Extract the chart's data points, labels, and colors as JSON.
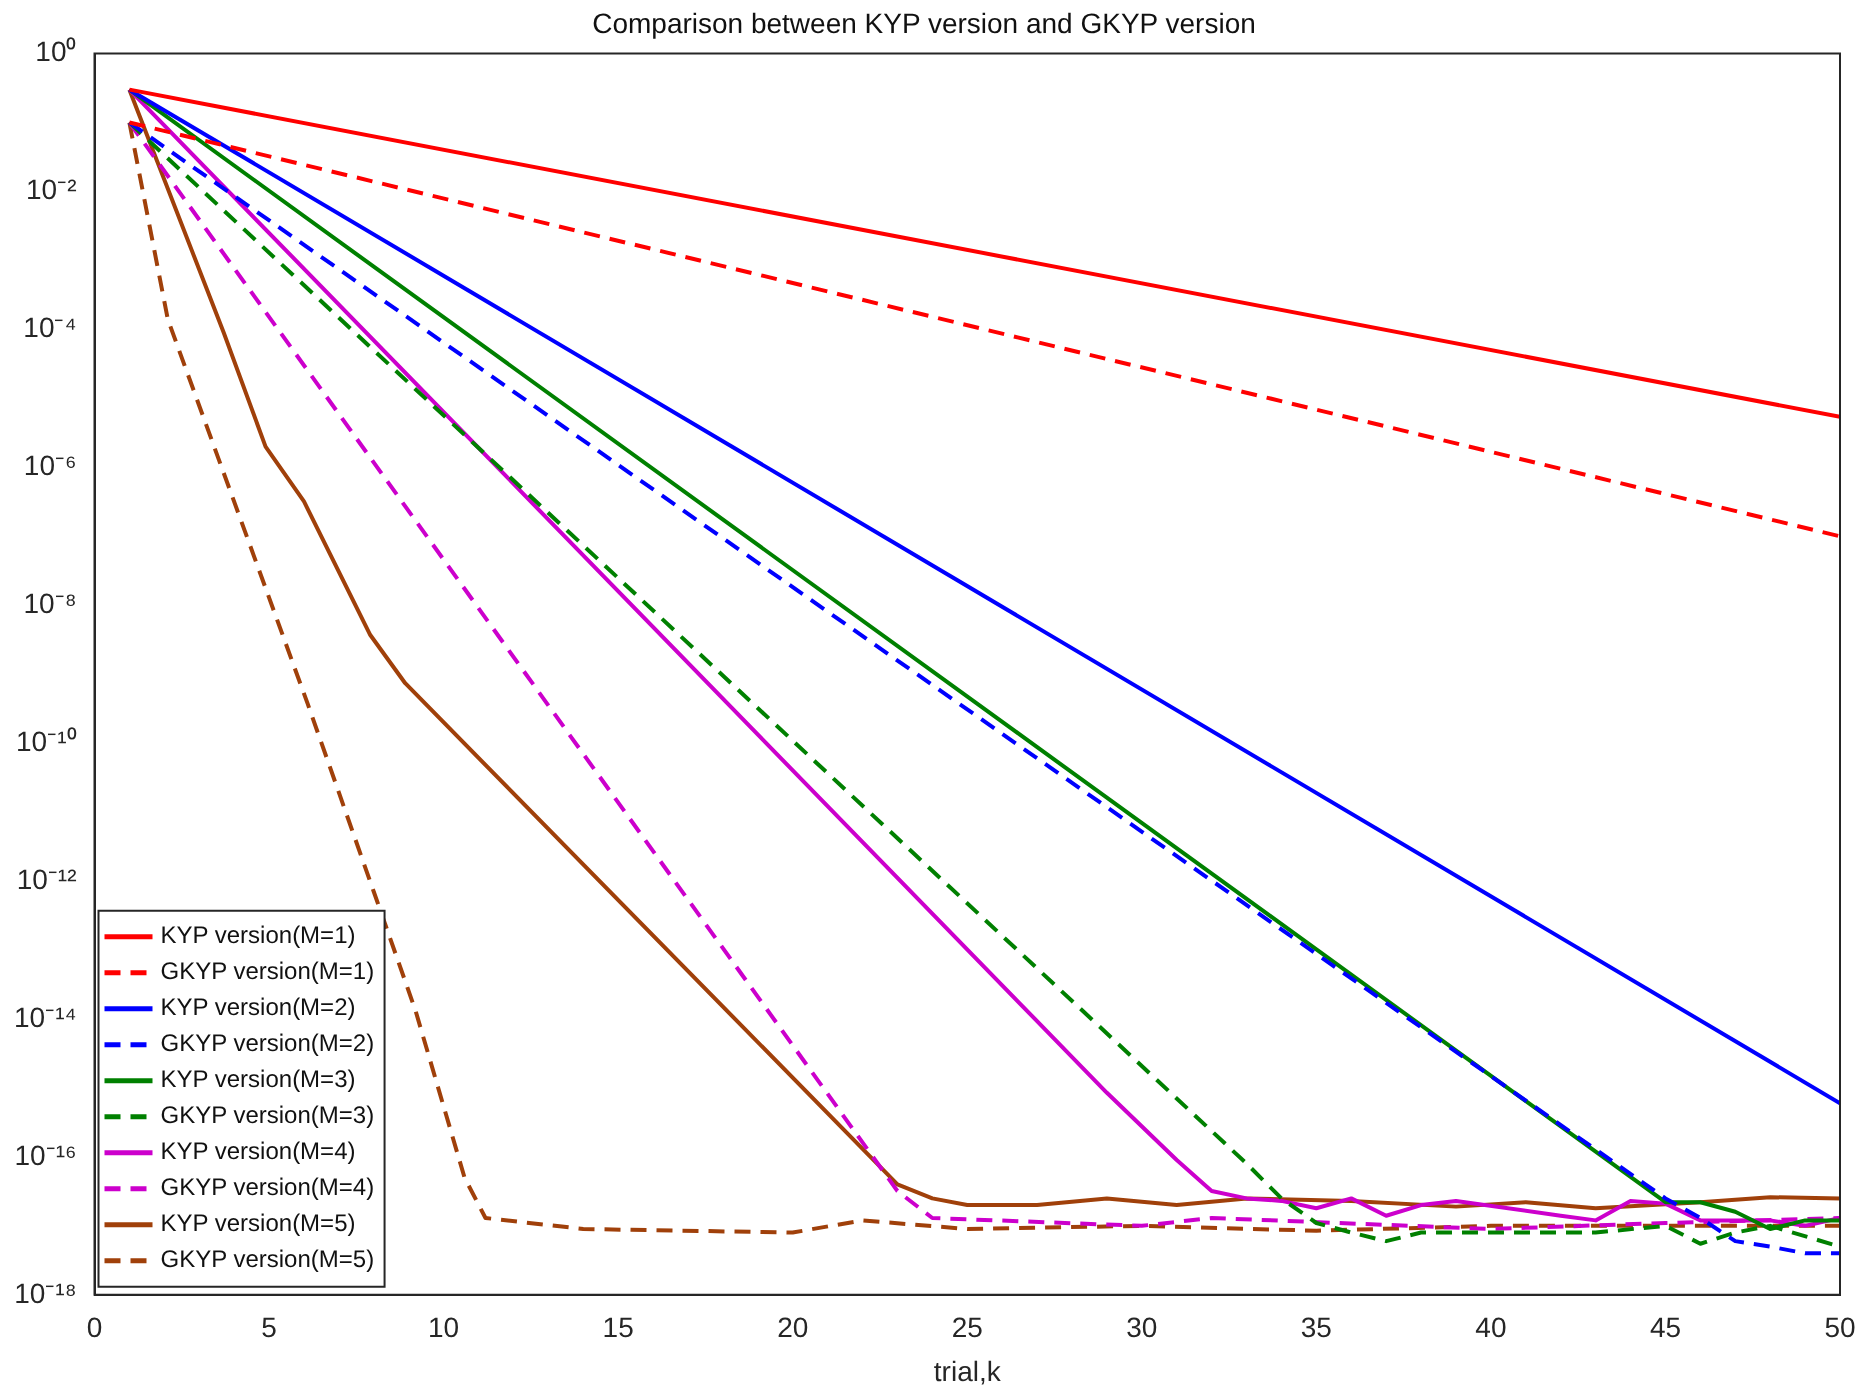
{
  "chart_data": {
    "type": "line",
    "title": "Comparison between KYP version and GKYP version",
    "xlabel": "trial,k",
    "log": "y",
    "xlim": [
      0,
      50
    ],
    "xticks": [
      0,
      5,
      10,
      15,
      20,
      25,
      30,
      35,
      40,
      45,
      50
    ],
    "ylim": [
      1e-18,
      1
    ],
    "yticks": [
      {
        "value": 1e-18,
        "label": "10⁻¹⁸"
      },
      {
        "value": 1e-16,
        "label": "10⁻¹⁶"
      },
      {
        "value": 1e-14,
        "label": "10⁻¹⁴"
      },
      {
        "value": 1e-12,
        "label": "10⁻¹²"
      },
      {
        "value": 1e-10,
        "label": "10⁻¹⁰"
      },
      {
        "value": 1e-08,
        "label": "10⁻⁸"
      },
      {
        "value": 1e-06,
        "label": "10⁻⁶"
      },
      {
        "value": 0.0001,
        "label": "10⁻⁴"
      },
      {
        "value": 0.01,
        "label": "10⁻²"
      },
      {
        "value": 1,
        "label": "10⁰"
      }
    ],
    "grid": false,
    "legend": "bottom left",
    "marker": "none",
    "series": [
      {
        "name": "KYP version(M=1)",
        "color": "#ff0000",
        "line_style": "solid",
        "x": [
          1,
          50
        ],
        "values": [
          0.3,
          5.4e-06
        ]
      },
      {
        "name": "GKYP version(M=1)",
        "color": "#ff0000",
        "line_style": "dashed",
        "x": [
          1,
          50
        ],
        "values": [
          0.1,
          1e-07
        ]
      },
      {
        "name": "KYP version(M=2)",
        "color": "#0000ff",
        "line_style": "solid",
        "x": [
          1,
          50
        ],
        "values": [
          0.3,
          6e-16
        ]
      },
      {
        "name": "GKYP version(M=2)",
        "color": "#0000ff",
        "line_style": "dashed",
        "x": [
          1,
          45,
          46,
          47,
          48,
          49,
          50
        ],
        "values": [
          0.1,
          2.5e-17,
          1.3e-17,
          6e-18,
          5e-18,
          4e-18,
          4e-18
        ]
      },
      {
        "name": "KYP version(M=3)",
        "color": "#008000",
        "line_style": "solid",
        "x": [
          1,
          45,
          46,
          47,
          48,
          49,
          50
        ],
        "values": [
          0.3,
          2.2e-17,
          2.2e-17,
          1.6e-17,
          9e-18,
          1.2e-17,
          1.2e-17
        ]
      },
      {
        "name": "GKYP version(M=3)",
        "color": "#008000",
        "line_style": "dashed",
        "x": [
          1,
          33,
          34,
          35,
          36,
          37,
          38,
          40,
          43,
          45,
          46,
          47,
          48,
          50
        ],
        "values": [
          0.1,
          8e-17,
          2.5e-17,
          1.1e-17,
          8e-18,
          6e-18,
          8e-18,
          8e-18,
          8e-18,
          1e-17,
          5.5e-18,
          8e-18,
          1e-17,
          5e-18
        ]
      },
      {
        "name": "KYP version(M=4)",
        "color": "#cc00cc",
        "line_style": "solid",
        "x": [
          1,
          29,
          31,
          32,
          33,
          34,
          35,
          36,
          37,
          38,
          39,
          42,
          43,
          44,
          45,
          46,
          48,
          49,
          50
        ],
        "values": [
          0.3,
          8.5e-16,
          9e-17,
          3.2e-17,
          2.5e-17,
          2.3e-17,
          1.8e-17,
          2.5e-17,
          1.4e-17,
          2e-17,
          2.3e-17,
          1.4e-17,
          1.2e-17,
          2.3e-17,
          2.1e-17,
          1.2e-17,
          1.2e-17,
          1e-17,
          1.3e-17
        ]
      },
      {
        "name": "GKYP version(M=4)",
        "color": "#cc00cc",
        "line_style": "dashed",
        "x": [
          1,
          23,
          24,
          30,
          32,
          40,
          45,
          50
        ],
        "values": [
          0.1,
          3.2e-17,
          1.3e-17,
          1e-17,
          1.3e-17,
          9e-18,
          1.1e-17,
          1.3e-17
        ]
      },
      {
        "name": "KYP version(M=5)",
        "color": "#a0400a",
        "line_style": "solid",
        "x": [
          1,
          3.7,
          4.9,
          6,
          7.9,
          8.9,
          23,
          24,
          25,
          27,
          29,
          31,
          33,
          36,
          39,
          41,
          43,
          46,
          48,
          50
        ],
        "values": [
          0.3,
          9e-05,
          2e-06,
          3.2e-07,
          3.7e-09,
          7.4e-10,
          4e-17,
          2.5e-17,
          2e-17,
          2e-17,
          2.5e-17,
          2e-17,
          2.5e-17,
          2.3e-17,
          1.9e-17,
          2.2e-17,
          1.8e-17,
          2.2e-17,
          2.6e-17,
          2.5e-17
        ]
      },
      {
        "name": "GKYP version(M=5)",
        "color": "#a0400a",
        "line_style": "dashed",
        "x": [
          1,
          2.1,
          6.1,
          8,
          9.2,
          10.6,
          11.2,
          14,
          20,
          22,
          25,
          30,
          35,
          40,
          50
        ],
        "values": [
          0.1,
          0.00014,
          3.8e-10,
          7e-13,
          1.3e-14,
          5e-17,
          1.3e-17,
          9e-18,
          8e-18,
          1.2e-17,
          9e-18,
          1e-17,
          8.5e-18,
          1e-17,
          1e-17
        ]
      }
    ]
  }
}
